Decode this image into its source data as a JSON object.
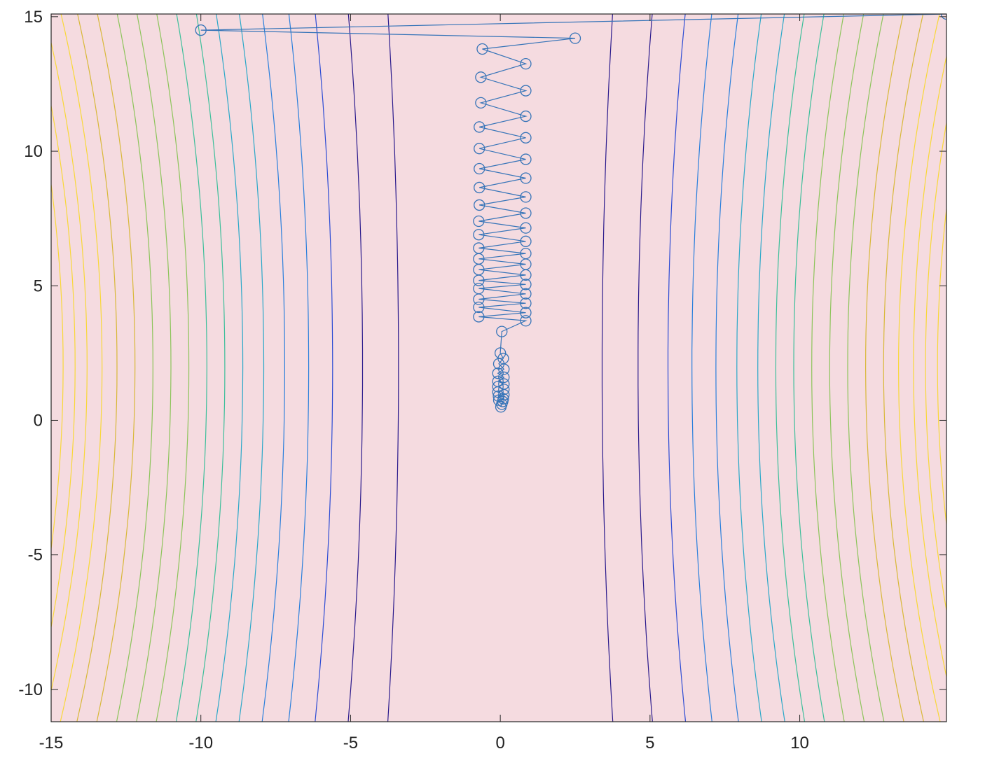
{
  "chart_data": {
    "type": "line",
    "title": "",
    "xlabel": "",
    "ylabel": "",
    "xlim": [
      -15,
      14.9
    ],
    "ylim": [
      -11.2,
      15.1
    ],
    "x_ticks": [
      "-15",
      "-10",
      "-5",
      "0",
      "5",
      "10"
    ],
    "x_tick_values": [
      -15,
      -10,
      -5,
      0,
      5,
      10
    ],
    "y_ticks": [
      "15",
      "10",
      "5",
      "0",
      "-5",
      "-10"
    ],
    "y_tick_values": [
      15,
      10,
      5,
      0,
      -5,
      -10
    ],
    "grid": false,
    "background_color": "#f5dbe0",
    "contour": {
      "description": "contour lines of an elongated quadratic, nearly vertical",
      "levels_x_at_center": [
        -14.6,
        -14.2,
        -13.8,
        -13.3,
        -12.8,
        -12.2,
        -11.6,
        -11.0,
        -10.4,
        -9.8,
        -9.2,
        -8.6,
        -7.9,
        -7.2,
        -6.4,
        -5.6,
        -4.6,
        -3.4,
        3.4,
        4.6,
        5.6,
        6.4,
        7.2,
        7.9,
        8.6,
        9.2,
        9.8,
        10.4,
        11.0,
        11.6,
        12.2,
        12.8,
        13.3,
        13.8,
        14.2,
        14.6
      ],
      "colormap": [
        "#2a1a8c",
        "#2c4bd4",
        "#2a7fdc",
        "#2aa8c8",
        "#3cbf9a",
        "#8cc45a",
        "#d8b838",
        "#f8d838"
      ]
    },
    "series": [
      {
        "color": "#3674b8",
        "marker": "circle",
        "x": [
          14.9,
          -10.0,
          2.5,
          -0.6,
          0.85,
          -0.65,
          0.85,
          -0.65,
          0.85,
          -0.7,
          0.85,
          -0.7,
          0.85,
          -0.7,
          0.85,
          -0.7,
          0.85,
          -0.7,
          0.85,
          -0.72,
          0.85,
          -0.72,
          0.85,
          -0.72,
          0.85,
          -0.72,
          0.85,
          -0.72,
          0.85,
          -0.72,
          0.85,
          -0.72,
          0.85,
          -0.72,
          0.85,
          -0.72,
          0.85,
          -0.72,
          0.85,
          0.05,
          0.0,
          0.1,
          -0.05,
          0.12,
          -0.08,
          0.12,
          -0.08,
          0.12,
          -0.08,
          0.12,
          -0.08,
          0.12,
          -0.06,
          0.1,
          -0.05,
          0.08,
          0.05,
          0.02
        ],
        "y": [
          15.1,
          14.5,
          14.2,
          13.8,
          13.25,
          12.75,
          12.25,
          11.8,
          11.3,
          10.9,
          10.5,
          10.1,
          9.7,
          9.35,
          9.0,
          8.65,
          8.3,
          8.0,
          7.7,
          7.4,
          7.15,
          6.9,
          6.65,
          6.4,
          6.2,
          6.0,
          5.8,
          5.6,
          5.4,
          5.2,
          5.05,
          4.9,
          4.7,
          4.5,
          4.35,
          4.2,
          4.0,
          3.85,
          3.7,
          3.3,
          2.5,
          2.3,
          2.1,
          1.9,
          1.75,
          1.6,
          1.45,
          1.35,
          1.25,
          1.15,
          1.05,
          0.95,
          0.9,
          0.8,
          0.75,
          0.7,
          0.6,
          0.5
        ]
      }
    ]
  }
}
